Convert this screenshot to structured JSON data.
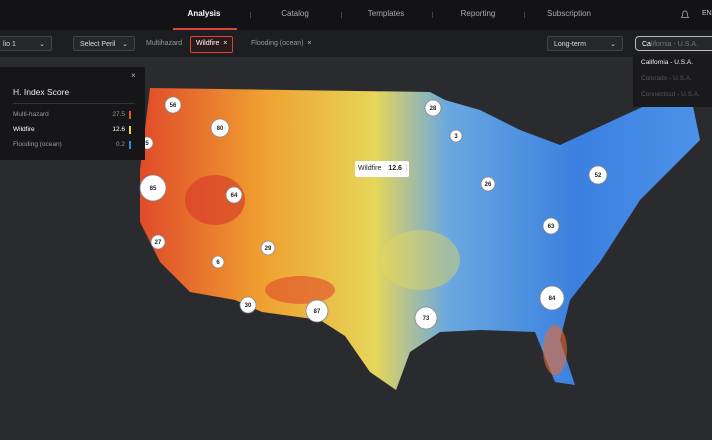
{
  "nav": {
    "items": [
      "Analysis",
      "Catalog",
      "Templates",
      "Reporting",
      "Subscription"
    ],
    "language": "EN"
  },
  "toolbar": {
    "portfolio": "lio 1",
    "peril_select": "Select Peril",
    "chips": [
      "Multihazard",
      "Wildfire",
      "Flooding (ocean)"
    ],
    "horizon": "Long-term",
    "search": {
      "query": "Ca",
      "completion": "lifornia - U.S.A."
    },
    "suggestions": [
      "California - U.S.A.",
      "Colorado - U.S.A.",
      "Connecticut - U.S.A."
    ]
  },
  "panel": {
    "title": "H. Index Score",
    "rows": [
      {
        "label": "Multi-hazard",
        "value": 27.5,
        "color": "#e8572a"
      },
      {
        "label": "Wildfire",
        "value": 12.6,
        "color": "#f2d23a"
      },
      {
        "label": "Flooding (ocean)",
        "value": 0.2,
        "color": "#3a86e8"
      }
    ]
  },
  "tooltip": {
    "label": "Wildfire",
    "value": 12.6
  },
  "clusters": [
    56,
    80,
    5,
    85,
    64,
    27,
    29,
    6,
    30,
    87,
    28,
    3,
    26,
    52,
    63,
    84,
    73
  ]
}
